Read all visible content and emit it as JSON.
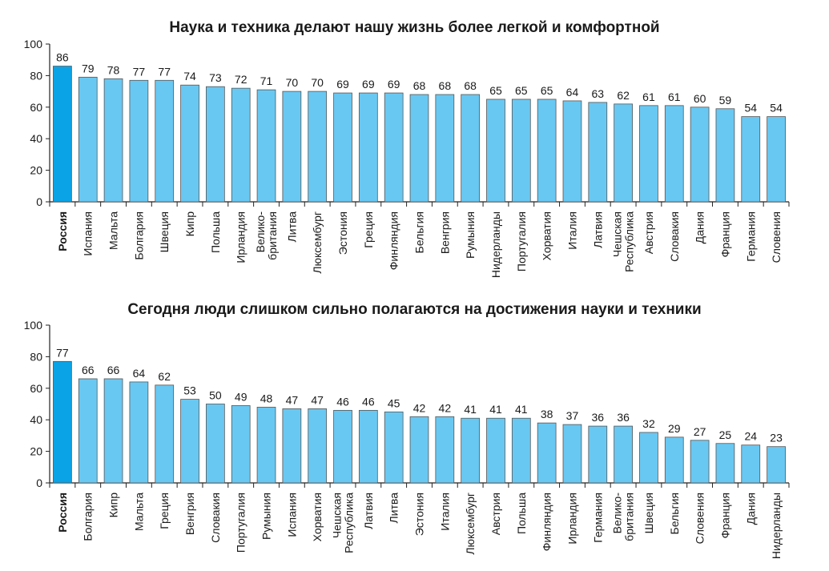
{
  "colors": {
    "bar": "#69c8f2",
    "highlight": "#0aa3e6",
    "bar_stroke": "#555555",
    "axis": "#222222",
    "text": "#1a1a1a"
  },
  "chart_data": [
    {
      "type": "bar",
      "title": "Наука и техника делают нашу жизнь более легкой и комфортной",
      "xlabel": "",
      "ylabel": "",
      "ylim": [
        0,
        100
      ],
      "yticks": [
        "0",
        "20",
        "40",
        "60",
        "80",
        "100"
      ],
      "highlight": "Россия",
      "categories": [
        "Россия",
        "Испания",
        "Мальта",
        "Болгария",
        "Швеция",
        "Кипр",
        "Польша",
        "Ирландия",
        "Велико-\nбритания",
        "Литва",
        "Люксембург",
        "Эстония",
        "Греция",
        "Финляндия",
        "Бельгия",
        "Венгрия",
        "Румыния",
        "Нидерланды",
        "Португалия",
        "Хорватия",
        "Италия",
        "Латвия",
        "Чешская\nРеспублика",
        "Австрия",
        "Словакия",
        "Дания",
        "Франция",
        "Германия",
        "Словения"
      ],
      "values": [
        86,
        79,
        78,
        77,
        77,
        74,
        73,
        72,
        71,
        70,
        70,
        69,
        69,
        69,
        68,
        68,
        68,
        65,
        65,
        65,
        64,
        63,
        62,
        61,
        61,
        60,
        59,
        54,
        54
      ],
      "value_labels": [
        "86",
        "79",
        "78",
        "77",
        "77",
        "74",
        "73",
        "72",
        "71",
        "70",
        "70",
        "69",
        "69",
        "69",
        "68",
        "68",
        "68",
        "65",
        "65",
        "65",
        "64",
        "63",
        "62",
        "61",
        "61",
        "60",
        "59",
        "54",
        "54"
      ],
      "grid": false
    },
    {
      "type": "bar",
      "title": "Сегодня люди слишком сильно полагаются на достижения науки и техники",
      "xlabel": "",
      "ylabel": "",
      "ylim": [
        0,
        100
      ],
      "yticks": [
        "0",
        "20",
        "40",
        "60",
        "80",
        "100"
      ],
      "highlight": "Россия",
      "categories": [
        "Россия",
        "Болгария",
        "Кипр",
        "Мальта",
        "Греция",
        "Венгрия",
        "Словакия",
        "Португалия",
        "Румыния",
        "Испания",
        "Хорватия",
        "Чешская\nРеспублика",
        "Латвия",
        "Литва",
        "Эстония",
        "Италия",
        "Люксембург",
        "Австрия",
        "Польша",
        "Финляндия",
        "Ирландия",
        "Германия",
        "Велико-\nбритания",
        "Швеция",
        "Бельгия",
        "Словения",
        "Франция",
        "Дания",
        "Нидерланды"
      ],
      "values": [
        77,
        66,
        66,
        64,
        62,
        53,
        50,
        49,
        48,
        47,
        47,
        46,
        46,
        45,
        42,
        42,
        41,
        41,
        41,
        38,
        37,
        36,
        36,
        32,
        29,
        27,
        25,
        24,
        23
      ],
      "value_labels": [
        "77",
        "66",
        "66",
        "64",
        "62",
        "53",
        "50",
        "49",
        "48",
        "47",
        "47",
        "46",
        "46",
        "45",
        "42",
        "42",
        "41",
        "41",
        "41",
        "38",
        "37",
        "36",
        "36",
        "32",
        "29",
        "27",
        "25",
        "24",
        "23"
      ],
      "grid": false
    }
  ]
}
